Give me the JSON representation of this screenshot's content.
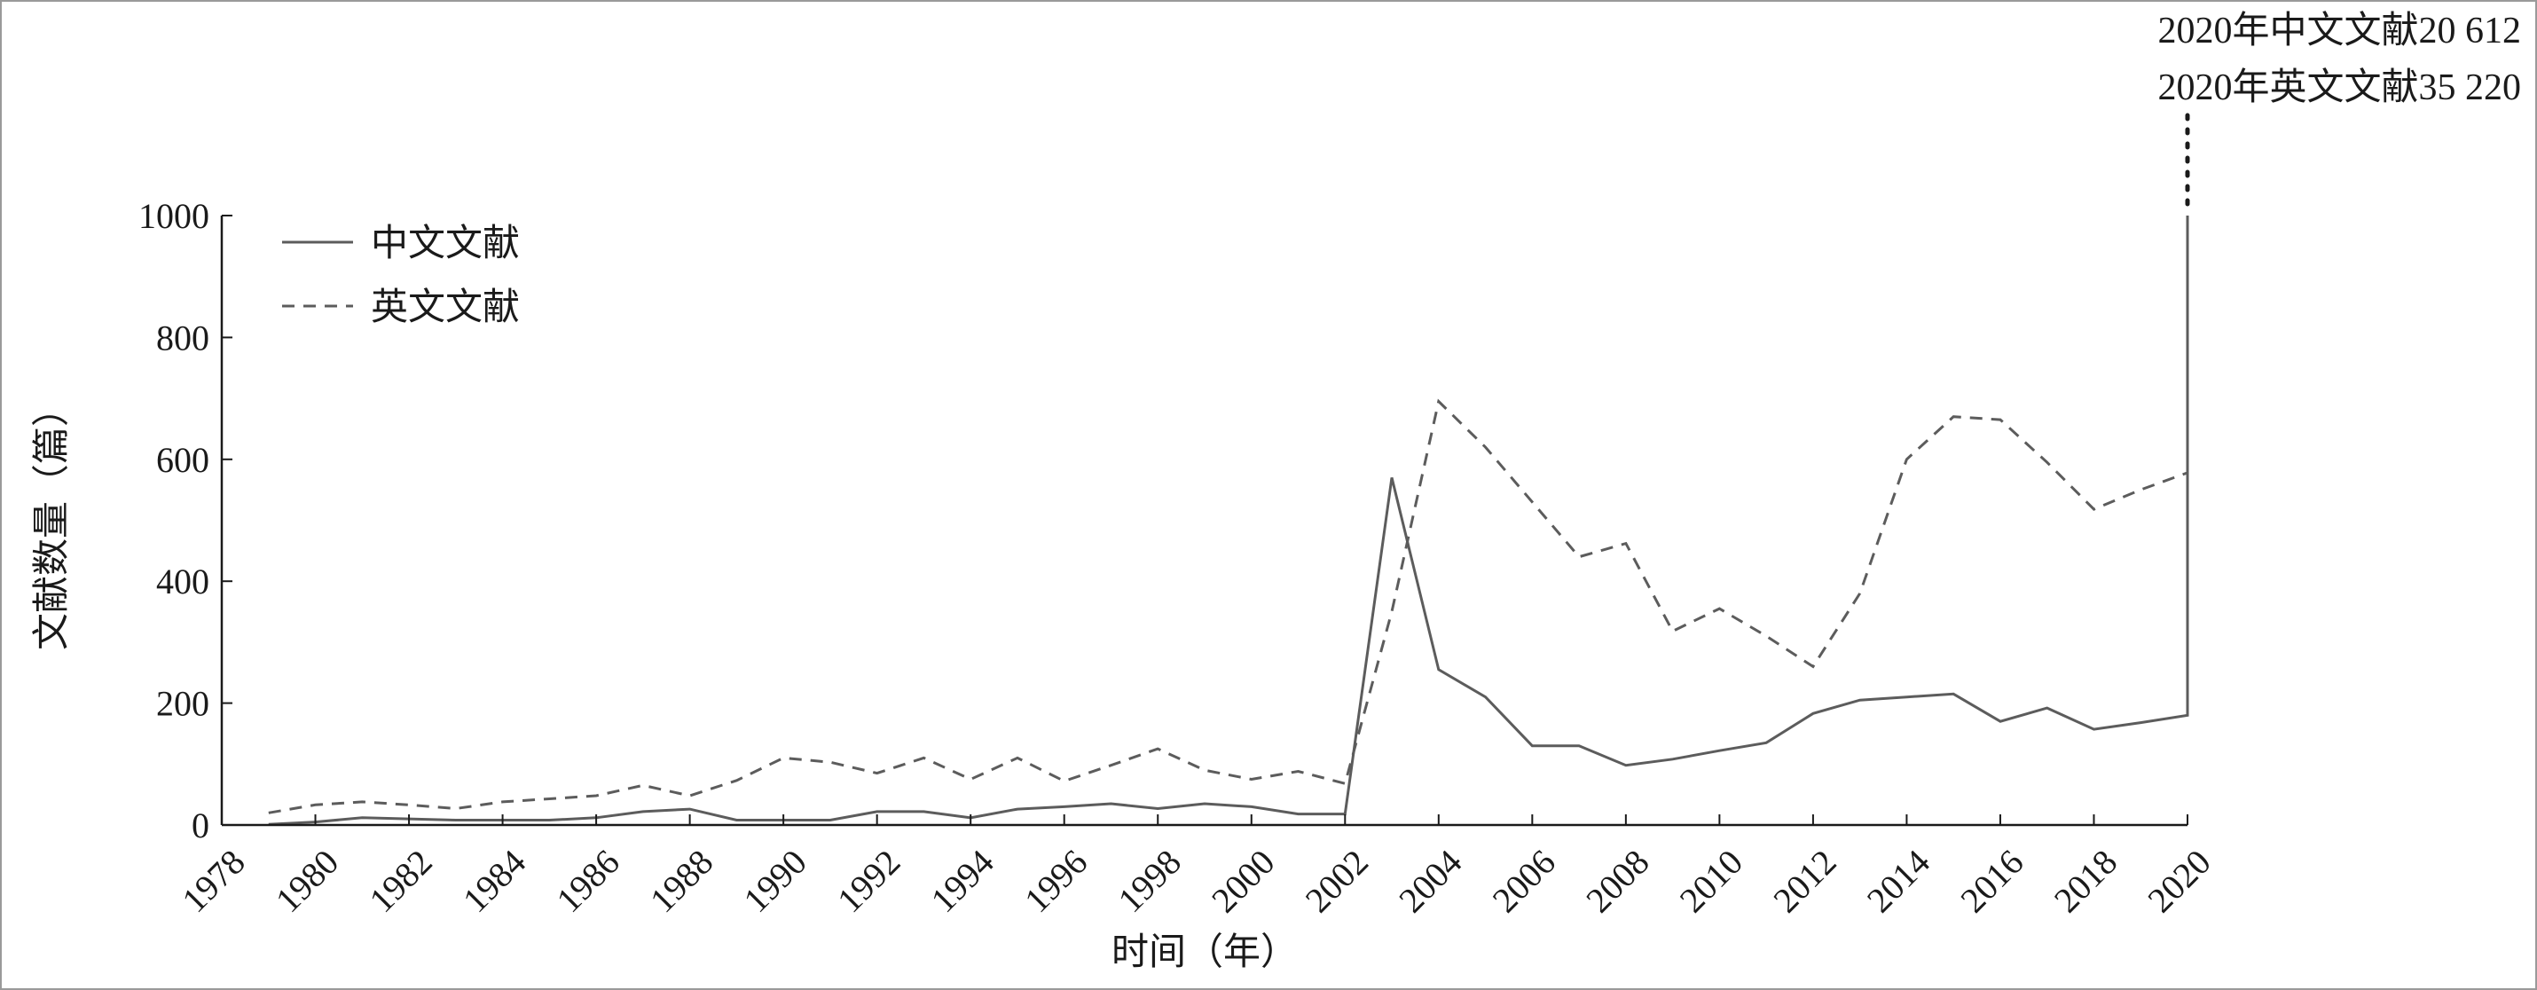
{
  "chart_data": {
    "type": "line",
    "xlabel": "时间（年）",
    "ylabel": "文献数量（篇）",
    "xlim": [
      1978,
      2020
    ],
    "ylim": [
      0,
      1000
    ],
    "xticks": [
      "1978",
      "1980",
      "1982",
      "1984",
      "1986",
      "1988",
      "1990",
      "1992",
      "1994",
      "1996",
      "1998",
      "2000",
      "2002",
      "2004",
      "2006",
      "2008",
      "2010",
      "2012",
      "2014",
      "2016",
      "2018",
      "2020"
    ],
    "yticks": [
      "0",
      "200",
      "400",
      "600",
      "800",
      "1000"
    ],
    "legend_position": "top-left",
    "x": [
      1979,
      1980,
      1981,
      1982,
      1983,
      1984,
      1985,
      1986,
      1987,
      1988,
      1989,
      1990,
      1991,
      1992,
      1993,
      1994,
      1995,
      1996,
      1997,
      1998,
      1999,
      2000,
      2001,
      2002,
      2003,
      2004,
      2005,
      2006,
      2007,
      2008,
      2009,
      2010,
      2011,
      2012,
      2013,
      2014,
      2015,
      2016,
      2017,
      2018,
      2019,
      2020
    ],
    "series": [
      {
        "name": "中文文献",
        "style": "solid",
        "values": [
          1,
          5,
          12,
          10,
          8,
          8,
          8,
          12,
          22,
          26,
          8,
          8,
          8,
          22,
          22,
          12,
          26,
          30,
          35,
          27,
          35,
          30,
          18,
          18,
          570,
          255,
          210,
          130,
          130,
          98,
          108,
          122,
          135,
          183,
          205,
          210,
          215,
          170,
          192,
          157,
          168,
          180
        ],
        "final_value": 1000
      },
      {
        "name": "英文文献",
        "style": "dashed",
        "values": [
          20,
          33,
          38,
          33,
          27,
          38,
          43,
          48,
          65,
          48,
          73,
          110,
          103,
          85,
          110,
          75,
          110,
          72,
          98,
          125,
          90,
          75,
          88,
          68,
          350,
          695,
          620,
          530,
          440,
          462,
          318,
          355,
          310,
          260,
          380,
          600,
          670,
          665,
          595,
          518,
          550,
          578
        ],
        "final_value": 1000
      }
    ],
    "annotations": [
      "2020年中文文献20 612",
      "2020年英文文献35 220"
    ]
  }
}
